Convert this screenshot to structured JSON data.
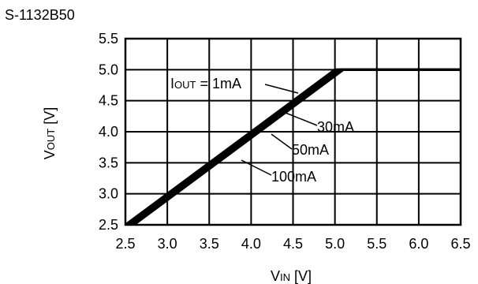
{
  "title": "S-1132B50",
  "chart_data": {
    "type": "line",
    "title": "S-1132B50",
    "xlabel": {
      "main": "V",
      "sub": "IN",
      "unit": " [V]"
    },
    "ylabel": {
      "main": "V",
      "sub": "OUT",
      "unit": " [V]"
    },
    "xlim": [
      2.5,
      6.5
    ],
    "ylim": [
      2.5,
      5.5
    ],
    "xticks": [
      "2.5",
      "3.0",
      "3.5",
      "4.0",
      "4.5",
      "5.0",
      "5.5",
      "6.0",
      "6.5"
    ],
    "yticks": [
      "2.5",
      "3.0",
      "3.5",
      "4.0",
      "4.5",
      "5.0",
      "5.5"
    ],
    "grid": true,
    "series": [
      {
        "name": "IOUT = 1mA",
        "x": [
          2.5,
          5.0,
          6.5
        ],
        "y": [
          2.5,
          5.0,
          5.0
        ]
      },
      {
        "name": "30mA",
        "x": [
          2.53,
          5.03,
          6.5
        ],
        "y": [
          2.5,
          5.0,
          5.0
        ]
      },
      {
        "name": "50mA",
        "x": [
          2.56,
          5.06,
          6.5
        ],
        "y": [
          2.5,
          5.0,
          5.0
        ]
      },
      {
        "name": "100mA",
        "x": [
          2.6,
          5.1,
          6.5
        ],
        "y": [
          2.5,
          5.0,
          5.0
        ]
      }
    ],
    "annotations": [
      {
        "label_main": "I",
        "label_sub": "OUT",
        "label_rest": " = 1mA",
        "series": "IOUT = 1mA"
      },
      {
        "label": "30mA",
        "series": "30mA"
      },
      {
        "label": "50mA",
        "series": "50mA"
      },
      {
        "label": "100mA",
        "series": "100mA"
      }
    ]
  }
}
